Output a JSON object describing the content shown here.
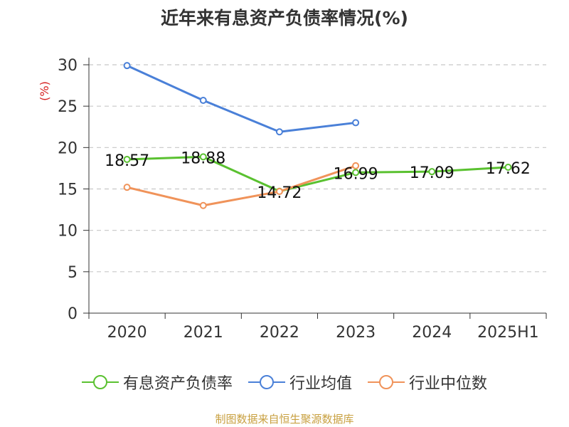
{
  "chart_data": {
    "type": "line",
    "title": "近年来有息资产负债率情况(%)",
    "ylabel": "(%)",
    "xlabel": "",
    "categories": [
      "2020",
      "2021",
      "2022",
      "2023",
      "2024",
      "2025H1"
    ],
    "yticks": [
      "0",
      "5",
      "10",
      "15",
      "20",
      "25",
      "30"
    ],
    "ylim": [
      0,
      30
    ],
    "grid": "horizontal-dashed",
    "legend_position": "bottom",
    "series": [
      {
        "name": "有息资产负债率",
        "color": "#5ac130",
        "values": [
          18.57,
          18.88,
          14.72,
          16.99,
          17.09,
          17.62
        ],
        "labels": [
          "18.57",
          "18.88",
          "14.72",
          "16.99",
          "17.09",
          "17.62"
        ]
      },
      {
        "name": "行业均值",
        "color": "#4a80d8",
        "values": [
          29.9,
          25.7,
          21.9,
          23.0,
          null,
          null
        ]
      },
      {
        "name": "行业中位数",
        "color": "#f0935a",
        "values": [
          15.2,
          13.0,
          14.7,
          17.8,
          null,
          null
        ]
      }
    ]
  },
  "source_note": "制图数据来自恒生聚源数据库"
}
